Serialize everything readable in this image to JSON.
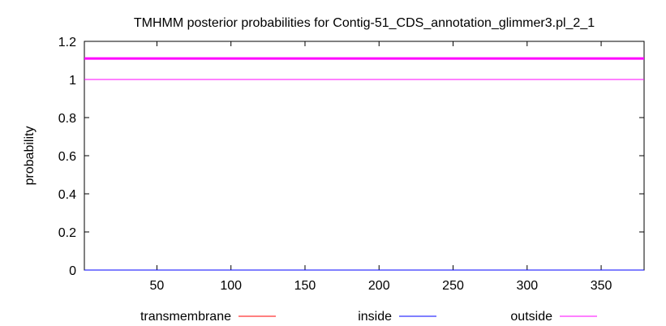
{
  "chart_data": {
    "type": "line",
    "title": "TMHMM posterior probabilities for Contig-51_CDS_annotation_glimmer3.pl_2_1",
    "xlabel": "",
    "ylabel": "probability",
    "xlim": [
      1,
      379
    ],
    "ylim": [
      0,
      1.2
    ],
    "x_ticks": [
      50,
      100,
      150,
      200,
      250,
      300,
      350
    ],
    "x_tick_labels": [
      "50",
      "100",
      "150",
      "200",
      "250",
      "300",
      "350"
    ],
    "y_ticks": [
      0,
      0.2,
      0.4,
      0.6,
      0.8,
      1,
      1.2
    ],
    "y_tick_labels": [
      "0",
      "0.2",
      "0.4",
      "0.6",
      "0.8",
      "1",
      "1.2"
    ],
    "grid": false,
    "legend_position": "bottom",
    "series": [
      {
        "name": "transmembrane",
        "color": "#ff0000",
        "x": [
          1,
          379
        ],
        "values": [
          0,
          0
        ]
      },
      {
        "name": "inside",
        "color": "#0000ff",
        "x": [
          1,
          379
        ],
        "values": [
          0,
          0
        ]
      },
      {
        "name": "outside",
        "color": "#ff00ff",
        "x": [
          1,
          379
        ],
        "values": [
          1,
          1
        ]
      }
    ],
    "annotation_band": {
      "color": "#ff00ff",
      "x": [
        1,
        379
      ],
      "y": 1.11
    }
  }
}
